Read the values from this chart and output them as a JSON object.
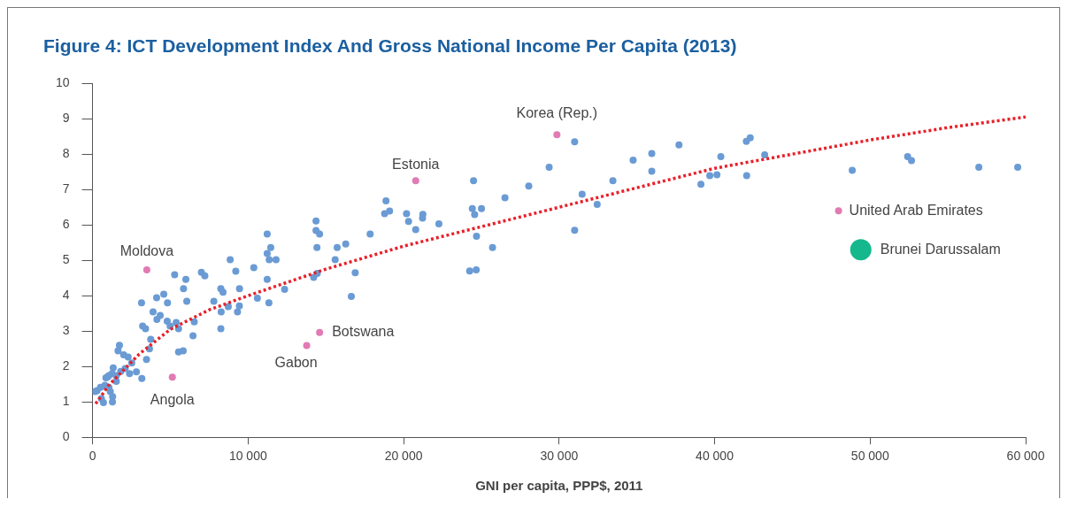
{
  "chart_data": {
    "type": "scatter",
    "title": "Figure 4: ICT Development Index And Gross National Income Per Capita (2013)",
    "xlabel": "GNI per capita, PPP$, 2011",
    "xlim": [
      0,
      60000
    ],
    "xticks": [
      0,
      {
        "value": 10000,
        "label": "10 000"
      },
      {
        "value": 20000,
        "label": "20 000"
      },
      {
        "value": 30000,
        "label": "30 000"
      },
      {
        "value": 40000,
        "label": "40 000"
      },
      {
        "value": 50000,
        "label": "50 000"
      },
      {
        "value": 60000,
        "label": "60 000"
      }
    ],
    "ylim": [
      0,
      10
    ],
    "yticks": [
      0,
      1,
      2,
      3,
      4,
      5,
      6,
      7,
      8,
      9,
      10
    ],
    "grid": false,
    "legend": false,
    "marker": "circle",
    "series": [
      {
        "color": "#6a9bd4",
        "x": [
          5280,
          6000,
          7000,
          7220,
          5850,
          4580,
          4120,
          4820,
          3150,
          6060,
          3890,
          4350,
          4140,
          4800,
          5380,
          3220,
          3410,
          4990,
          5530,
          6540,
          8250,
          8390,
          7800,
          8270,
          8250,
          6460,
          3740,
          1730,
          3660,
          1640,
          2000,
          2290,
          2520,
          3470,
          2820,
          3170,
          5530,
          5830,
          290,
          510,
          950,
          1260,
          1530,
          1810,
          2100,
          2380,
          800,
          1140,
          1290,
          1280,
          700,
          570,
          1050,
          860,
          1530,
          1330,
          1050,
          170,
          11230,
          14370,
          14370,
          14600,
          11460,
          11230,
          11360,
          11800,
          8850,
          10370,
          9210,
          11230,
          12350,
          9450,
          10600,
          11340,
          8730,
          9440,
          9320,
          14220,
          14450,
          14430,
          15730,
          16280,
          15600,
          16890,
          16640,
          17850,
          29360,
          31000,
          34760,
          28050,
          24500,
          33460,
          26520,
          31480,
          32450,
          18870,
          18780,
          19100,
          20190,
          20320,
          21240,
          21220,
          20780,
          22270,
          24420,
          25010,
          24570,
          24690,
          25720,
          24250,
          24670,
          31000,
          35960,
          35960,
          37710,
          40400,
          42040,
          42290,
          43220,
          39120,
          39690,
          40150,
          42060,
          48850,
          52410,
          52660,
          56990,
          59490
        ],
        "values": [
          4.59,
          4.46,
          4.66,
          4.56,
          4.2,
          4.04,
          3.94,
          3.8,
          3.8,
          3.84,
          3.54,
          3.44,
          3.33,
          3.28,
          3.24,
          3.14,
          3.07,
          3.14,
          3.07,
          3.26,
          4.2,
          4.1,
          3.84,
          3.54,
          3.07,
          2.87,
          2.77,
          2.6,
          2.5,
          2.44,
          2.33,
          2.27,
          2.1,
          2.2,
          1.85,
          1.66,
          2.41,
          2.44,
          1.32,
          1.41,
          1.7,
          1.8,
          1.74,
          1.86,
          1.94,
          1.8,
          1.47,
          1.29,
          1.15,
          1.0,
          0.98,
          1.09,
          1.41,
          1.68,
          1.58,
          1.96,
          1.74,
          1.29,
          5.74,
          6.11,
          5.84,
          5.74,
          5.36,
          5.19,
          5.02,
          5.02,
          5.02,
          4.79,
          4.69,
          4.46,
          4.18,
          4.2,
          3.93,
          3.8,
          3.69,
          3.71,
          3.54,
          4.52,
          4.63,
          5.36,
          5.36,
          5.46,
          5.02,
          4.65,
          3.98,
          5.74,
          7.63,
          8.35,
          7.83,
          7.1,
          7.25,
          7.25,
          6.77,
          6.87,
          6.58,
          6.68,
          6.32,
          6.39,
          6.32,
          6.1,
          6.3,
          6.19,
          5.87,
          6.03,
          6.46,
          6.46,
          6.29,
          5.68,
          5.36,
          4.7,
          4.73,
          5.85,
          8.02,
          7.52,
          8.26,
          7.93,
          8.36,
          8.46,
          7.98,
          7.15,
          7.39,
          7.42,
          7.39,
          7.54,
          7.93,
          7.82,
          7.63,
          7.63
        ]
      },
      {
        "color": "#e07bb4",
        "x": [
          3490,
          5130,
          13770,
          14600,
          20780,
          29860,
          47970
        ],
        "values": [
          4.73,
          1.7,
          2.59,
          2.96,
          7.25,
          8.55,
          6.4
        ]
      },
      {
        "color": "#14b88c",
        "x": [
          49400
        ],
        "values": [
          5.3
        ]
      },
      {
        "type": "line",
        "color": "#e8202a",
        "line_style": "dotted",
        "marker": "none",
        "x": [
          200,
          570,
          1000,
          2000,
          3000,
          5000,
          7500,
          10000,
          15000,
          20000,
          25000,
          30000,
          35000,
          40000,
          45000,
          50000,
          55000,
          60000
        ],
        "values": [
          0.95,
          1.17,
          1.45,
          1.9,
          2.35,
          3.05,
          3.6,
          4.0,
          4.75,
          5.4,
          5.95,
          6.5,
          7.05,
          7.6,
          8.0,
          8.4,
          8.75,
          9.05
        ]
      }
    ],
    "annotations": [
      {
        "text": "Moldova",
        "x": 3490,
        "y": 4.73
      },
      {
        "text": "Angola",
        "x": 5130,
        "y": 1.7
      },
      {
        "text": "Gabon",
        "x": 13770,
        "y": 2.59
      },
      {
        "text": "Botswana",
        "x": 14600,
        "y": 2.96
      },
      {
        "text": "Estonia",
        "x": 20780,
        "y": 7.25
      },
      {
        "text": "Korea (Rep.)",
        "x": 29860,
        "y": 8.55
      },
      {
        "text": "United Arab Emirates",
        "x": 47970,
        "y": 6.4
      },
      {
        "text": "Brunei Darussalam",
        "x": 49400,
        "y": 5.3
      }
    ]
  }
}
